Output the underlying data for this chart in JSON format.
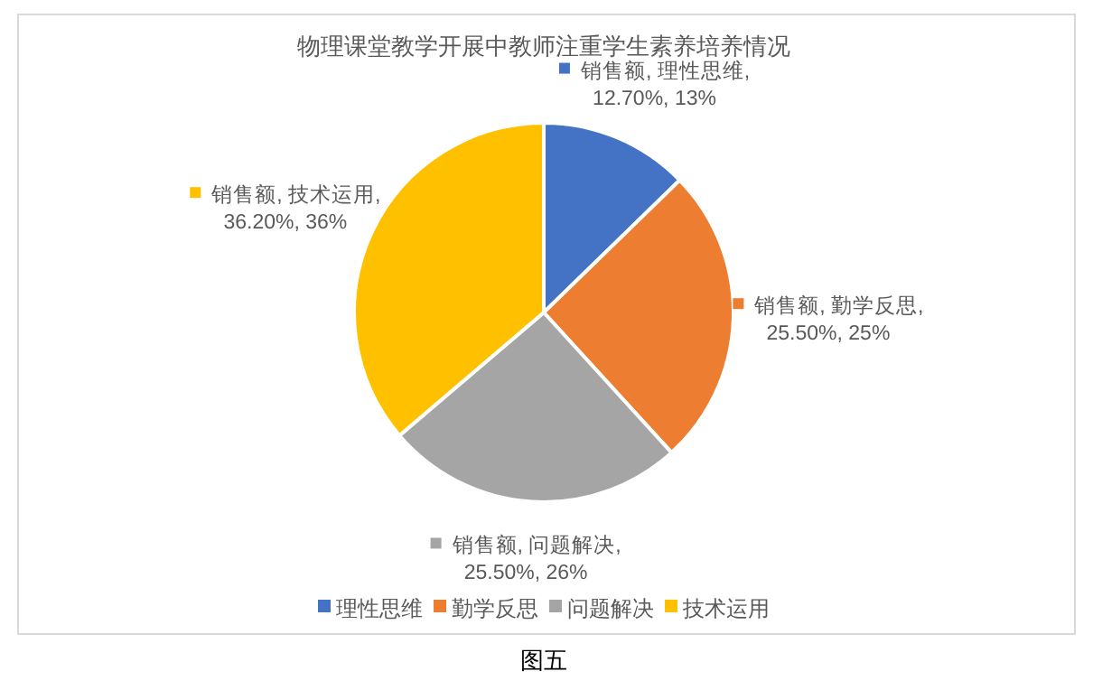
{
  "chart_data": {
    "type": "pie",
    "title": "物理课堂教学开展中教师注重学生素养培养情况",
    "categories": [
      "理性思维",
      "勤学反思",
      "问题解决",
      "技术运用"
    ],
    "values": [
      12.7,
      25.5,
      25.5,
      36.2
    ],
    "colors": [
      "#4472c4",
      "#ed7d31",
      "#a5a5a5",
      "#ffc000"
    ],
    "value_labels": [
      "销售额, 理性思维,\n12.70%, 13%",
      "销售额, 勤学反思,\n25.50%, 25%",
      "销售额, 问题解决,\n25.50%, 26%",
      "销售额, 技术运用,\n36.20%, 36%"
    ],
    "legend": "bottom",
    "annotations": [
      "图五"
    ]
  }
}
